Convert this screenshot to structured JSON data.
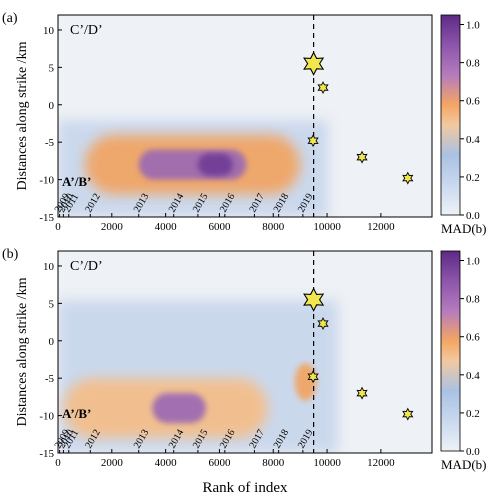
{
  "chart_data": [
    {
      "type": "heatmap",
      "panel_label": "(a)",
      "region_labels": {
        "upper": "C’/D’",
        "lower": "A’/B’"
      },
      "xlabel": "",
      "ylabel": "Distances along strike /km",
      "xlim": [
        0,
        13900
      ],
      "ylim": [
        -15,
        12
      ],
      "x_ticks": [
        0,
        2000,
        4000,
        6000,
        8000,
        10000,
        12000
      ],
      "y_ticks": [
        10,
        5,
        0,
        -5,
        -10,
        -15
      ],
      "year_labels": [
        {
          "year": "2009",
          "x": 60
        },
        {
          "year": "2010",
          "x": 200
        },
        {
          "year": "2011",
          "x": 400
        },
        {
          "year": "2012",
          "x": 1200
        },
        {
          "year": "2013",
          "x": 3000
        },
        {
          "year": "2014",
          "x": 4300
        },
        {
          "year": "2015",
          "x": 5200
        },
        {
          "year": "2016",
          "x": 6200
        },
        {
          "year": "2017",
          "x": 7300
        },
        {
          "year": "2018",
          "x": 8200
        },
        {
          "year": "2019",
          "x": 9100
        }
      ],
      "mainshock_index": 9500,
      "events": [
        {
          "x": 9500,
          "y": 5.5,
          "size": "large"
        },
        {
          "x": 9850,
          "y": 2.3,
          "size": "small"
        },
        {
          "x": 9480,
          "y": -4.8,
          "size": "small"
        },
        {
          "x": 11300,
          "y": -7.0,
          "size": "small"
        },
        {
          "x": 13000,
          "y": -9.8,
          "size": "small"
        }
      ],
      "colorbar": {
        "label": "MAD(b)",
        "ticks": [
          0.0,
          0.2,
          0.4,
          0.6,
          0.8,
          1.0
        ],
        "range": [
          0,
          1.05
        ]
      },
      "anomalies": [
        {
          "x": [
            1000,
            9000
          ],
          "y": [
            -12,
            -4
          ],
          "value": 0.55
        },
        {
          "x": [
            3000,
            7000
          ],
          "y": [
            -10,
            -6
          ],
          "value": 0.75
        },
        {
          "x": [
            5200,
            6500
          ],
          "y": [
            -9.5,
            -6.5
          ],
          "value": 0.88
        }
      ]
    },
    {
      "type": "heatmap",
      "panel_label": "(b)",
      "region_labels": {
        "upper": "C’/D’",
        "lower": "A’/B’"
      },
      "xlabel": "Rank of index",
      "ylabel": "Distances along strike /km",
      "xlim": [
        0,
        13900
      ],
      "ylim": [
        -15,
        12
      ],
      "x_ticks": [
        0,
        2000,
        4000,
        6000,
        8000,
        10000,
        12000
      ],
      "y_ticks": [
        10,
        5,
        0,
        -5,
        -10,
        -15
      ],
      "year_labels": [
        {
          "year": "2009",
          "x": 60
        },
        {
          "year": "2010",
          "x": 200
        },
        {
          "year": "2011",
          "x": 400
        },
        {
          "year": "2012",
          "x": 1200
        },
        {
          "year": "2013",
          "x": 3000
        },
        {
          "year": "2014",
          "x": 4300
        },
        {
          "year": "2015",
          "x": 5200
        },
        {
          "year": "2016",
          "x": 6200
        },
        {
          "year": "2017",
          "x": 7300
        },
        {
          "year": "2018",
          "x": 8200
        },
        {
          "year": "2019",
          "x": 9100
        }
      ],
      "mainshock_index": 9500,
      "events": [
        {
          "x": 9500,
          "y": 5.5,
          "size": "large"
        },
        {
          "x": 9850,
          "y": 2.3,
          "size": "small"
        },
        {
          "x": 9480,
          "y": -4.8,
          "size": "small"
        },
        {
          "x": 11300,
          "y": -7.0,
          "size": "small"
        },
        {
          "x": 13000,
          "y": -9.8,
          "size": "small"
        }
      ],
      "colorbar": {
        "label": "MAD(b)",
        "ticks": [
          0.0,
          0.2,
          0.4,
          0.6,
          0.8,
          1.0
        ],
        "range": [
          0,
          1.05
        ]
      },
      "anomalies": [
        {
          "x": [
            200,
            7800
          ],
          "y": [
            -13,
            -5
          ],
          "value": 0.5
        },
        {
          "x": [
            3500,
            5500
          ],
          "y": [
            -11,
            -7
          ],
          "value": 0.78
        },
        {
          "x": [
            8800,
            9600
          ],
          "y": [
            -8,
            -3
          ],
          "value": 0.55
        }
      ]
    }
  ]
}
